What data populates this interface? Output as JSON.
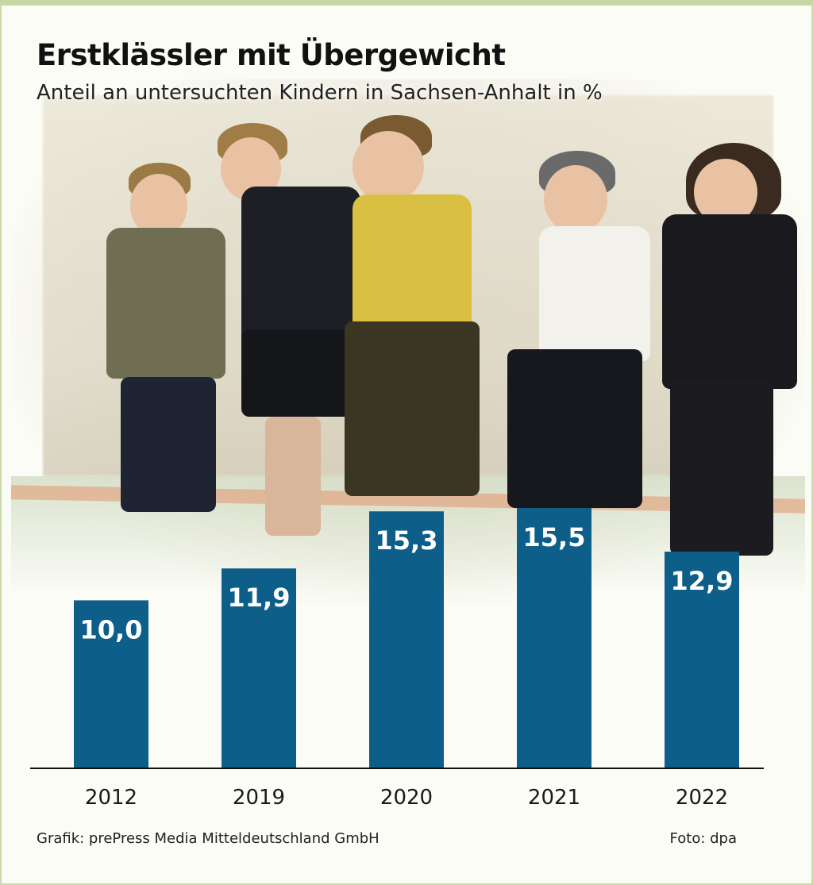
{
  "title": "Erstklässler mit Übergewicht",
  "subtitle": "Anteil an untersuchten Kindern in Sachsen-Anhalt in %",
  "credits": {
    "graphic": "Grafik: prePress Media Mitteldeutschland GmbH",
    "photo": "Foto: dpa"
  },
  "colors": {
    "bar": "#0e5e8a",
    "background": "#fbfcf6",
    "border": "#c6d7a3"
  },
  "chart_data": {
    "type": "bar",
    "categories": [
      "2012",
      "2019",
      "2020",
      "2021",
      "2022"
    ],
    "values": [
      10.0,
      11.9,
      15.3,
      15.5,
      12.9
    ],
    "value_labels": [
      "10,0",
      "11,9",
      "15,3",
      "15,5",
      "12,9"
    ],
    "title": "Erstklässler mit Übergewicht",
    "subtitle": "Anteil an untersuchten Kindern in Sachsen-Anhalt in %",
    "xlabel": "",
    "ylabel": "",
    "ylim": [
      0,
      15.5
    ],
    "grid": false,
    "legend": "none"
  }
}
